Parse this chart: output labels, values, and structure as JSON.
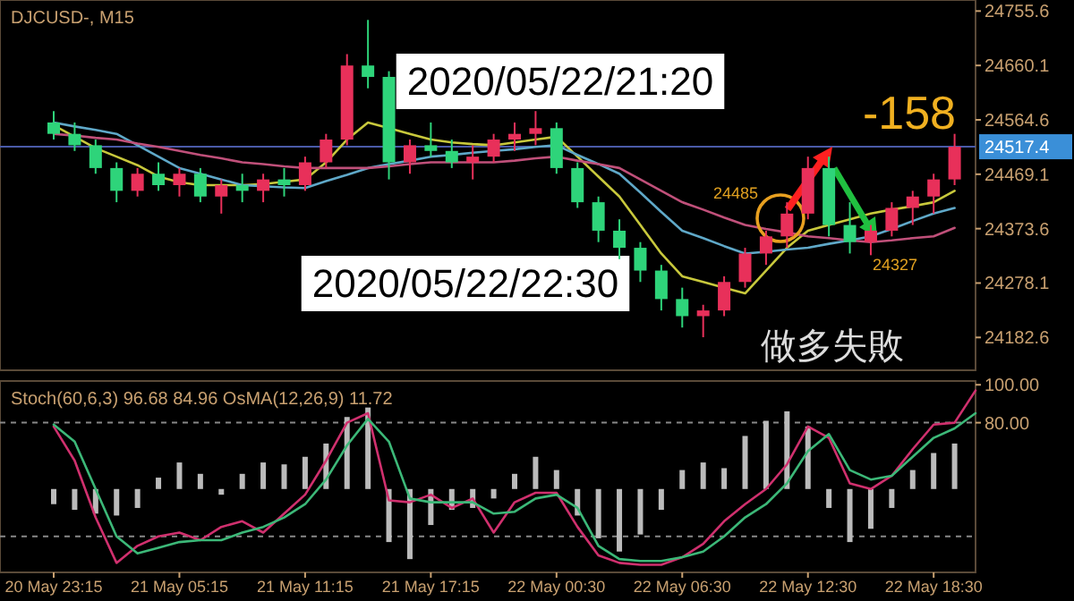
{
  "chart_data": [
    {
      "type": "candlestick",
      "title": "DJCUSD-, M15",
      "categories": [
        null,
        null,
        null,
        null,
        null,
        null,
        null,
        null,
        null,
        null,
        null,
        null,
        null,
        null,
        null,
        null,
        null,
        null,
        null,
        null,
        null,
        null,
        null,
        null,
        null,
        null,
        null,
        null,
        null,
        null,
        null,
        null,
        null,
        null,
        null,
        null,
        null,
        null,
        null,
        null,
        null,
        null,
        null,
        null
      ],
      "ohlc": [
        [
          24560,
          24580,
          24530,
          24540
        ],
        [
          24540,
          24560,
          24510,
          24520
        ],
        [
          24520,
          24530,
          24470,
          24480
        ],
        [
          24480,
          24490,
          24420,
          24440
        ],
        [
          24440,
          24480,
          24430,
          24470
        ],
        [
          24470,
          24490,
          24440,
          24450
        ],
        [
          24450,
          24480,
          24430,
          24470
        ],
        [
          24470,
          24480,
          24420,
          24430
        ],
        [
          24430,
          24460,
          24400,
          24450
        ],
        [
          24450,
          24470,
          24420,
          24440
        ],
        [
          24440,
          24470,
          24420,
          24460
        ],
        [
          24460,
          24480,
          24430,
          24450
        ],
        [
          24450,
          24500,
          24440,
          24490
        ],
        [
          24490,
          24540,
          24480,
          24530
        ],
        [
          24530,
          24680,
          24520,
          24660
        ],
        [
          24660,
          24740,
          24620,
          24640
        ],
        [
          24640,
          24650,
          24460,
          24490
        ],
        [
          24490,
          24530,
          24470,
          24520
        ],
        [
          24520,
          24560,
          24500,
          24510
        ],
        [
          24510,
          24530,
          24480,
          24490
        ],
        [
          24490,
          24520,
          24460,
          24500
        ],
        [
          24500,
          24540,
          24490,
          24530
        ],
        [
          24530,
          24560,
          24510,
          24540
        ],
        [
          24540,
          24580,
          24520,
          24550
        ],
        [
          24550,
          24560,
          24470,
          24480
        ],
        [
          24480,
          24490,
          24410,
          24420
        ],
        [
          24420,
          24430,
          24350,
          24370
        ],
        [
          24370,
          24390,
          24320,
          24340
        ],
        [
          24340,
          24350,
          24280,
          24300
        ],
        [
          24300,
          24310,
          24230,
          24250
        ],
        [
          24250,
          24270,
          24200,
          24220
        ],
        [
          24220,
          24240,
          24183,
          24230
        ],
        [
          24230,
          24290,
          24220,
          24280
        ],
        [
          24280,
          24340,
          24270,
          24330
        ],
        [
          24330,
          24370,
          24310,
          24360
        ],
        [
          24360,
          24420,
          24340,
          24400
        ],
        [
          24400,
          24500,
          24390,
          24480
        ],
        [
          24480,
          24500,
          24360,
          24380
        ],
        [
          24380,
          24420,
          24330,
          24350
        ],
        [
          24350,
          24380,
          24327,
          24370
        ],
        [
          24370,
          24420,
          24360,
          24410
        ],
        [
          24410,
          24440,
          24380,
          24430
        ],
        [
          24430,
          24470,
          24400,
          24460
        ],
        [
          24460,
          24540,
          24450,
          24517.4
        ]
      ],
      "colors": [
        "#2ed47a",
        "#2ed47a",
        "#2ed47a",
        "#2ed47a",
        "#e8305a",
        "#2ed47a",
        "#e8305a",
        "#2ed47a",
        "#e8305a",
        "#2ed47a",
        "#e8305a",
        "#2ed47a",
        "#e8305a",
        "#e8305a",
        "#e8305a",
        "#2ed47a",
        "#2ed47a",
        "#e8305a",
        "#2ed47a",
        "#2ed47a",
        "#e8305a",
        "#e8305a",
        "#e8305a",
        "#e8305a",
        "#2ed47a",
        "#2ed47a",
        "#2ed47a",
        "#2ed47a",
        "#2ed47a",
        "#2ed47a",
        "#2ed47a",
        "#e8305a",
        "#e8305a",
        "#e8305a",
        "#e8305a",
        "#e8305a",
        "#e8305a",
        "#2ed47a",
        "#2ed47a",
        "#e8305a",
        "#e8305a",
        "#e8305a",
        "#e8305a",
        "#e8305a"
      ],
      "series": [
        {
          "type": "line",
          "color": "#c8c83c",
          "values": [
            24555,
            24535,
            24515,
            24500,
            24485,
            24465,
            24455,
            24450,
            24450,
            24450,
            24452,
            24456,
            24460,
            24490,
            24530,
            24560,
            24550,
            24540,
            24530,
            24525,
            24522,
            24520,
            24525,
            24530,
            24535,
            24500,
            24465,
            24430,
            24380,
            24330,
            24290,
            24280,
            24270,
            24260,
            24300,
            24340,
            24370,
            24380,
            24390,
            24400,
            24407,
            24413,
            24420,
            24440
          ]
        },
        {
          "type": "line",
          "color": "#5fa8c8",
          "values": [
            24560,
            24553,
            24547,
            24540,
            24520,
            24500,
            24480,
            24470,
            24460,
            24450,
            24448,
            24446,
            24445,
            24457,
            24468,
            24480,
            24487,
            24493,
            24500,
            24503,
            24507,
            24510,
            24513,
            24517,
            24520,
            24503,
            24487,
            24470,
            24437,
            24403,
            24370,
            24357,
            24343,
            24330,
            24333,
            24337,
            24340,
            24347,
            24353,
            24360,
            24373,
            24387,
            24400,
            24410
          ]
        },
        {
          "type": "line",
          "color": "#c0507a",
          "values": [
            24540,
            24537,
            24533,
            24530,
            24523,
            24517,
            24510,
            24503,
            24497,
            24490,
            24487,
            24483,
            24480,
            24480,
            24480,
            24480,
            24483,
            24487,
            24490,
            24490,
            24490,
            24490,
            24493,
            24497,
            24500,
            24493,
            24487,
            24480,
            24460,
            24440,
            24420,
            24407,
            24393,
            24380,
            24373,
            24367,
            24360,
            24357,
            24353,
            24350,
            24353,
            24357,
            24360,
            24375
          ]
        }
      ],
      "ylim": [
        24125,
        24775
      ],
      "yticks": [
        24755.6,
        24660.1,
        24564.6,
        24469.1,
        24373.6,
        24278.1,
        24182.6
      ],
      "tick_labels": "y",
      "ref_lines": [
        {
          "axis": "y",
          "value": 24517.4,
          "label": "24517.4",
          "color": "#4a5aa8"
        }
      ],
      "annotations": [
        "2020/05/22/21:20",
        "2020/05/22/22:30",
        "做多失敗",
        "-158",
        "24485",
        "24327"
      ]
    },
    {
      "type": "line",
      "title": "Stoch(60,6,3) 96.68 84.96 OsMA(12,26,9) 11.72",
      "categories": [
        "20 May 23:15",
        null,
        null,
        null,
        null,
        null,
        "21 May 05:15",
        null,
        null,
        null,
        null,
        null,
        "21 May 11:15",
        null,
        null,
        null,
        null,
        null,
        "21 May 17:15",
        null,
        null,
        null,
        null,
        null,
        "22 May 00:30",
        null,
        null,
        null,
        null,
        null,
        "22 May 06:30",
        null,
        null,
        null,
        null,
        null,
        "22 May 12:30",
        null,
        null,
        null,
        null,
        null,
        "22 May 18:30",
        null,
        null
      ],
      "series": [
        {
          "type": "bar",
          "color": "#bbbbbb",
          "base": [
            45,
            45,
            45,
            45,
            45,
            45,
            45,
            45,
            45,
            45,
            45,
            45,
            45,
            45,
            45,
            45,
            45,
            45,
            45,
            45,
            45,
            45,
            45,
            45,
            45,
            45,
            45,
            45,
            45,
            45,
            45,
            45,
            45,
            45,
            45,
            45,
            45,
            45,
            45,
            45,
            45,
            45,
            45,
            45,
            null
          ],
          "values": [
            -8,
            -11,
            -13,
            -14,
            -10,
            6,
            14,
            8,
            -3,
            8,
            14,
            13,
            17,
            24,
            38,
            43,
            -28,
            -37,
            -19,
            -11,
            -10,
            -5,
            8,
            17,
            10,
            -14,
            -26,
            -33,
            -24,
            -11,
            10,
            14,
            11,
            28,
            36,
            41,
            33,
            -10,
            -28,
            -21,
            -10,
            10,
            19,
            24,
            null
          ]
        },
        {
          "type": "line",
          "color": "#d0306e",
          "values": [
            78,
            60,
            30,
            6,
            15,
            20,
            22,
            18,
            25,
            28,
            22,
            32,
            42,
            60,
            80,
            85,
            39,
            38,
            42,
            35,
            40,
            22,
            38,
            43,
            43,
            25,
            10,
            6,
            5,
            5,
            9,
            16,
            28,
            37,
            45,
            58,
            78,
            72,
            48,
            45,
            52,
            66,
            79,
            80,
            97
          ]
        },
        {
          "type": "line",
          "color": "#3cb878",
          "values": [
            79,
            70,
            45,
            20,
            11,
            14,
            17,
            18,
            18,
            22,
            25,
            30,
            37,
            50,
            68,
            82,
            70,
            40,
            38,
            38,
            38,
            32,
            33,
            40,
            42,
            35,
            15,
            8,
            7,
            7,
            9,
            12,
            20,
            30,
            37,
            48,
            65,
            74,
            55,
            50,
            52,
            62,
            72,
            77,
            85
          ]
        }
      ],
      "ylim": [
        1,
        102
      ],
      "yticks": [
        {
          "value": 100,
          "label": "100.00"
        },
        {
          "value": 80,
          "label": "80.00"
        }
      ],
      "ref_lines": [
        {
          "axis": "y",
          "value": 80,
          "color": "#888888",
          "line_style": "dashed"
        },
        {
          "axis": "y",
          "value": 20,
          "color": "#888888",
          "line_style": "dashed"
        }
      ]
    }
  ]
}
